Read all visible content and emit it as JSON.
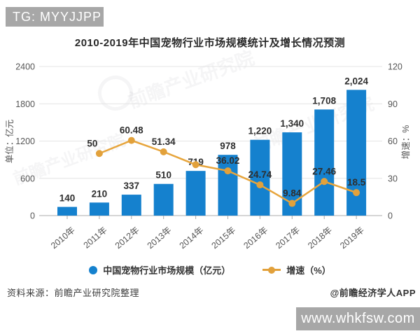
{
  "banners": {
    "top_left": "TG: MYYJJPP",
    "bottom_right": "www.whkfsw.com"
  },
  "title": "2010-2019年中国宠物行业市场规模统计及增长情况预测",
  "watermark": {
    "text": "前瞻产业研究院"
  },
  "footer": {
    "source": "资料来源：前瞻产业研究院整理",
    "credit": "@前瞻经济学人APP"
  },
  "legend": [
    {
      "label": "中国宠物行业市场规模（亿元）",
      "color": "#1581ce",
      "type": "bar"
    },
    {
      "label": "增速（%）",
      "color": "#e2a13b",
      "type": "line"
    }
  ],
  "chart_data": {
    "type": "bar+line",
    "title": "2010-2019年中国宠物行业市场规模统计及增长情况预测",
    "categories": [
      "2010年",
      "2011年",
      "2012年",
      "2013年",
      "2014年",
      "2015年",
      "2016年",
      "2017年",
      "2018年",
      "2019年"
    ],
    "series": [
      {
        "name": "中国宠物行业市场规模（亿元）",
        "type": "bar",
        "axis": "left",
        "color": "#1581ce",
        "values": [
          140,
          210,
          337,
          510,
          719,
          978,
          1220,
          1340,
          1708,
          2024
        ],
        "labels": [
          "140",
          "210",
          "337",
          "510",
          "719",
          "978",
          "1,220",
          "1,340",
          "1,708",
          "2,024"
        ]
      },
      {
        "name": "增速（%）",
        "type": "line",
        "axis": "right",
        "color": "#e7a53c",
        "marker_color": "#e2a13b",
        "x_start_index": 1,
        "values": [
          50,
          60.48,
          51.34,
          40.98,
          36.02,
          24.74,
          9.84,
          27.46,
          18.5
        ],
        "labels": [
          "50",
          "60.48",
          "51.34",
          "",
          "36.02",
          "24.74",
          "9.84",
          "27.46",
          "18.5"
        ]
      }
    ],
    "left_axis": {
      "title": "单位：亿元",
      "ticks": [
        0,
        600,
        1200,
        1800,
        2400
      ],
      "max": 2400
    },
    "right_axis": {
      "title": "增速：%",
      "ticks": [
        0,
        30,
        60,
        90,
        120
      ],
      "max": 120
    },
    "grid": true,
    "legend_position": "bottom"
  }
}
